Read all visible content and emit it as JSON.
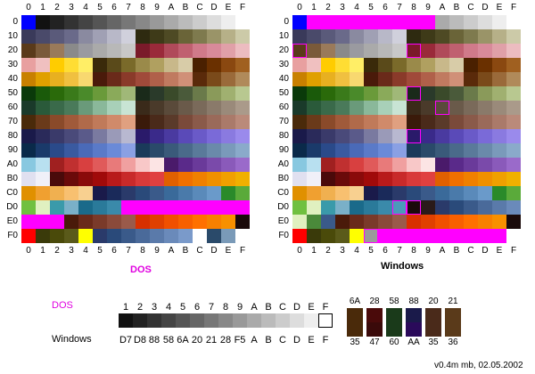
{
  "hex_digits": [
    "0",
    "1",
    "2",
    "3",
    "4",
    "5",
    "6",
    "7",
    "8",
    "9",
    "A",
    "B",
    "C",
    "D",
    "E",
    "F"
  ],
  "row_labels": [
    "0",
    "10",
    "20",
    "30",
    "40",
    "50",
    "60",
    "70",
    "80",
    "90",
    "A0",
    "B0",
    "C0",
    "D0",
    "E0",
    "F0"
  ],
  "left_title": "DOS",
  "right_title": "Windows",
  "dos_color": "#e000e0",
  "magenta": "#ff00ff",
  "left_grid": [
    [
      "#0000ff",
      "#111111",
      "#222222",
      "#333333",
      "#444444",
      "#555555",
      "#666666",
      "#777777",
      "#888888",
      "#999999",
      "#aaaaaa",
      "#bbbbbb",
      "#cccccc",
      "#dddddd",
      "#eeeeee",
      "#ffffff"
    ],
    [
      "#3a3a5a",
      "#4a4a6a",
      "#5a5a7a",
      "#6a6a8a",
      "#8a8aa0",
      "#a0a0b4",
      "#b8b8c8",
      "#d0d0dc",
      "#2e2a10",
      "#3e3a18",
      "#4e4a24",
      "#6a6438",
      "#7e7a4e",
      "#9a9468",
      "#b6b088",
      "#cccaa8"
    ],
    [
      "#5a3a1a",
      "#7a5a3a",
      "#9a7a5a",
      "#8a8a8a",
      "#9a9aa0",
      "#aaaaaa",
      "#b8b8b8",
      "#c8c8c8",
      "#7a1a2a",
      "#9a2a3a",
      "#b04a5a",
      "#c06070",
      "#d07a8a",
      "#d88a9a",
      "#e0a0a8",
      "#ecbcc0"
    ],
    [
      "#e8a0a0",
      "#f0c0c0",
      "#ffcc00",
      "#ffdd33",
      "#ffee66",
      "#3a2a0a",
      "#5a4a1a",
      "#7a6a2a",
      "#9a8a4a",
      "#b0a060",
      "#c8b88a",
      "#d8cca8",
      "#4a2000",
      "#6a3000",
      "#8a4810",
      "#a06020"
    ],
    [
      "#c88000",
      "#e0a000",
      "#e8b020",
      "#f0c040",
      "#f8d870",
      "#4a1a0a",
      "#6a2a1a",
      "#8a3a2a",
      "#a04a3a",
      "#b0604a",
      "#c07a60",
      "#d09078",
      "#5a2a0a",
      "#7a4a1a",
      "#9a6a3a",
      "#b08a5a"
    ],
    [
      "#0a3a0a",
      "#1a5a0a",
      "#2a6a0a",
      "#3a7a1a",
      "#4a8a2a",
      "#6a9a3a",
      "#8aaa5a",
      "#a0b878",
      "#1a2a1a",
      "#2a3a2a",
      "#3a4a2a",
      "#4a5a3a",
      "#6a7a4a",
      "#8a9a5a",
      "#a0b070",
      "#b8c890"
    ],
    [
      "#1a3a2a",
      "#2a5a3a",
      "#3a6a4a",
      "#4a7a5a",
      "#6a9a7a",
      "#8ab89a",
      "#a8d0b8",
      "#c8e4d4",
      "#3a2a1a",
      "#4a3a2a",
      "#5a4a3a",
      "#6a5a4a",
      "#7a6a5a",
      "#8a7a6a",
      "#9a8a7a",
      "#aa9a8a"
    ],
    [
      "#4a2a0a",
      "#6a3a1a",
      "#8a4a2a",
      "#a05a3a",
      "#b06a4a",
      "#c07a5a",
      "#d08a6a",
      "#e0a080",
      "#3a1a0a",
      "#4a2a1a",
      "#5a3a2a",
      "#7a4a3a",
      "#8a5a4a",
      "#9a6a5a",
      "#aa7a6a",
      "#ba8a7a"
    ],
    [
      "#1a1a4a",
      "#2a2a5a",
      "#3a3a6a",
      "#4a4a7a",
      "#5a5a8a",
      "#7a7aa0",
      "#9a9ab8",
      "#b8b8d0",
      "#2a1a6a",
      "#3a2a8a",
      "#4a3aa0",
      "#5a4ab8",
      "#6a5ac8",
      "#7a6ad8",
      "#8a7ae0",
      "#9a8aec"
    ],
    [
      "#0a2a4a",
      "#1a3a6a",
      "#2a4a8a",
      "#3a5aa0",
      "#4a6ab8",
      "#5a7ac8",
      "#6a8ad8",
      "#8aa0e4",
      "#1a3a5a",
      "#2a4a6a",
      "#3a5a7a",
      "#4a6a8a",
      "#5a7a9a",
      "#6a8aaa",
      "#7a9aba",
      "#8aaaca"
    ],
    [
      "#88c8e0",
      "#b8e0f0",
      "#a02020",
      "#c03030",
      "#d84040",
      "#e05a5a",
      "#e87a7a",
      "#f0a0a0",
      "#f8c8c8",
      "#fce4e4",
      "#4a1a6a",
      "#5a2a8a",
      "#6a3a9a",
      "#7a4aaa",
      "#8a5aba",
      "#9a6aca"
    ],
    [
      "#e0e0f0",
      "#f0f0f8",
      "#4a0a0a",
      "#6a0a0a",
      "#8a0a0a",
      "#a00a0a",
      "#b81a1a",
      "#c82a2a",
      "#d83a3a",
      "#e04040",
      "#e06000",
      "#f07000",
      "#f08000",
      "#f09000",
      "#f0a000",
      "#f0b000"
    ],
    [
      "#e09000",
      "#f0a030",
      "#f0b050",
      "#f8c070",
      "#f8d090",
      "#1a1a4a",
      "#1a2a5a",
      "#2a3a6a",
      "#2a4a7a",
      "#3a5a8a",
      "#3a6a9a",
      "#4a7aaa",
      "#5a8aba",
      "#6a9aca",
      "#2a8a2a",
      "#5aaa3a"
    ],
    [
      "#70c040",
      "#e0f0c0",
      "#3a9aaa",
      "#7ab0c8",
      "#1a6a8a",
      "#2a7a9a",
      "#3a8aaa",
      "#ff00ff",
      "#ff00ff",
      "#ff00ff",
      "#ff00ff",
      "#ff00ff",
      "#ff00ff",
      "#ff00ff",
      "#ff00ff",
      "#ff00ff"
    ],
    [
      "#ff00ff",
      "#ff00ff",
      "#ff00ff",
      "#4a1a0a",
      "#6a2a1a",
      "#7a3a2a",
      "#8a4a3a",
      "#9a5a4a",
      "#d83000",
      "#e04000",
      "#f05000",
      "#f86000",
      "#ff7000",
      "#f88000",
      "#f89000",
      "#1a0a0a"
    ],
    [
      "#ff0000",
      "#3a3a0a",
      "#4a4a0a",
      "#5a5a1a",
      "#ffff00",
      "#2a3a6a",
      "#2a4a7a",
      "#3a5a8a",
      "#4a6a9a",
      "#5a7aaa",
      "#6a8aba",
      "#7a9aca",
      "#ffffff",
      "#2a4a6a",
      "#7a9ab8",
      "#ffffff"
    ]
  ],
  "right_grid": [
    [
      "#0000ff",
      "#ff00ff",
      "#ff00ff",
      "#ff00ff",
      "#ff00ff",
      "#ff00ff",
      "#ff00ff",
      "#ff00ff",
      "#ff00ff",
      "#ff00ff",
      "#aaaaaa",
      "#bbbbbb",
      "#cccccc",
      "#dddddd",
      "#eeeeee",
      "#ffffff"
    ],
    [
      "#3a3a5a",
      "#4a4a6a",
      "#5a5a7a",
      "#6a6a8a",
      "#8a8aa0",
      "#a0a0b4",
      "#b8b8c8",
      "#d0d0dc",
      "#2e2a10",
      "#3e3a18",
      "#4e4a24",
      "#6a6438",
      "#7e7a4e",
      "#9a9468",
      "#b6b088",
      "#cccaa8"
    ],
    [
      "#5a3a1a",
      "#7a5a3a",
      "#9a7a5a",
      "#8a8a8a",
      "#9a9aa0",
      "#aaaaaa",
      "#b8b8b8",
      "#c8c8c8",
      "#7a1a2a",
      "#9a2a3a",
      "#b04a5a",
      "#c06070",
      "#d07a8a",
      "#d88a9a",
      "#e0a0a8",
      "#ecbcc0"
    ],
    [
      "#e8a0a0",
      "#f0c0c0",
      "#ffcc00",
      "#ffdd33",
      "#ffee66",
      "#3a2a0a",
      "#5a4a1a",
      "#7a6a2a",
      "#9a8a4a",
      "#b0a060",
      "#c8b88a",
      "#d8cca8",
      "#4a2000",
      "#6a3000",
      "#8a4810",
      "#a06020"
    ],
    [
      "#c88000",
      "#e0a000",
      "#e8b020",
      "#f0c040",
      "#f8d870",
      "#4a1a0a",
      "#6a2a1a",
      "#8a3a2a",
      "#a04a3a",
      "#b0604a",
      "#c07a60",
      "#d09078",
      "#5a2a0a",
      "#7a4a1a",
      "#9a6a3a",
      "#b08a5a"
    ],
    [
      "#0a3a0a",
      "#1a5a0a",
      "#2a6a0a",
      "#3a7a1a",
      "#4a8a2a",
      "#6a9a3a",
      "#8aaa5a",
      "#a0b878",
      "#1a2a1a",
      "#2a3a2a",
      "#3a4a2a",
      "#4a5a3a",
      "#6a7a4a",
      "#8a9a5a",
      "#a0b070",
      "#b8c890"
    ],
    [
      "#1a3a2a",
      "#2a5a3a",
      "#3a6a4a",
      "#4a7a5a",
      "#6a9a7a",
      "#8ab89a",
      "#a8d0b8",
      "#c8e4d4",
      "#3a2a1a",
      "#4a3a2a",
      "#5a4a3a",
      "#6a5a4a",
      "#7a6a5a",
      "#8a7a6a",
      "#9a8a7a",
      "#aa9a8a"
    ],
    [
      "#4a2a0a",
      "#6a3a1a",
      "#8a4a2a",
      "#a05a3a",
      "#b06a4a",
      "#c07a5a",
      "#d08a6a",
      "#e0a080",
      "#3a1a0a",
      "#4a2a1a",
      "#5a3a2a",
      "#7a4a3a",
      "#8a5a4a",
      "#9a6a5a",
      "#aa7a6a",
      "#ba8a7a"
    ],
    [
      "#1a1a4a",
      "#2a2a5a",
      "#3a3a6a",
      "#4a4a7a",
      "#5a5a8a",
      "#7a7aa0",
      "#9a9ab8",
      "#b8b8d0",
      "#2a1a6a",
      "#3a2a8a",
      "#4a3aa0",
      "#5a4ab8",
      "#6a5ac8",
      "#7a6ad8",
      "#8a7ae0",
      "#9a8aec"
    ],
    [
      "#0a2a4a",
      "#1a3a6a",
      "#2a4a8a",
      "#3a5aa0",
      "#4a6ab8",
      "#5a7ac8",
      "#6a8ad8",
      "#8aa0e4",
      "#1a3a5a",
      "#2a4a6a",
      "#3a5a7a",
      "#4a6a8a",
      "#5a7a9a",
      "#6a8aaa",
      "#7a9aba",
      "#8aaaca"
    ],
    [
      "#88c8e0",
      "#b8e0f0",
      "#a02020",
      "#c03030",
      "#d84040",
      "#e05a5a",
      "#e87a7a",
      "#f0a0a0",
      "#f8c8c8",
      "#fce4e4",
      "#4a1a6a",
      "#5a2a8a",
      "#6a3a9a",
      "#7a4aaa",
      "#8a5aba",
      "#9a6aca"
    ],
    [
      "#e0e0f0",
      "#f0f0f8",
      "#4a0a0a",
      "#6a0a0a",
      "#8a0a0a",
      "#a00a0a",
      "#b81a1a",
      "#c82a2a",
      "#d83a3a",
      "#e04040",
      "#e06000",
      "#f07000",
      "#f08000",
      "#f09000",
      "#f0a000",
      "#f0b000"
    ],
    [
      "#e09000",
      "#f0a030",
      "#f0b050",
      "#f8c070",
      "#f8d090",
      "#1a1a4a",
      "#1a2a5a",
      "#2a3a6a",
      "#2a4a7a",
      "#3a5a8a",
      "#3a6a9a",
      "#4a7aaa",
      "#5a8aba",
      "#6a9aca",
      "#2a8a2a",
      "#5aaa3a"
    ],
    [
      "#70c040",
      "#e0f0c0",
      "#3a9aaa",
      "#7ab0c8",
      "#1a6a8a",
      "#2a7a9a",
      "#3a8aaa",
      "#4a9aba",
      "#1a0a0a",
      "#2a1a1a",
      "#2a3a6a",
      "#2a4a7a",
      "#3a5a8a",
      "#4a6a9a",
      "#5a7aaa",
      "#6a8aba"
    ],
    [
      "#e0f0c0",
      "#4a8a3a",
      "#3a5a8a",
      "#4a1a0a",
      "#6a2a1a",
      "#7a3a2a",
      "#8a4a3a",
      "#9a5a4a",
      "#d83000",
      "#e04000",
      "#f05000",
      "#f86000",
      "#ff7000",
      "#f88000",
      "#f89000",
      "#1a0a0a"
    ],
    [
      "#ff0000",
      "#3a3a0a",
      "#4a4a0a",
      "#5a5a1a",
      "#ffff00",
      "#9a9a9a",
      "#ff00ff",
      "#ff00ff",
      "#ff00ff",
      "#ff00ff",
      "#ff00ff",
      "#ff00ff",
      "#ff00ff",
      "#ff00ff",
      "#ff00ff",
      "#ffffff"
    ]
  ],
  "right_outlined": [
    [
      2,
      0
    ],
    [
      2,
      8
    ],
    [
      5,
      8
    ],
    [
      6,
      10
    ],
    [
      8,
      8
    ],
    [
      13,
      7
    ],
    [
      13,
      8
    ],
    [
      15,
      5
    ]
  ],
  "legend": {
    "dos_label": "DOS",
    "windows_label": "Windows",
    "dos_codes": [
      "1",
      "2",
      "3",
      "4",
      "5",
      "6",
      "7",
      "8",
      "9",
      "A",
      "B",
      "C",
      "D",
      "E",
      "F"
    ],
    "windows_codes": [
      "D7",
      "D8",
      "88",
      "58",
      "6A",
      "20",
      "21",
      "28",
      "F5",
      "A",
      "B",
      "C",
      "D",
      "E",
      "F"
    ],
    "strip_colors": [
      "#111111",
      "#222222",
      "#333333",
      "#444444",
      "#555555",
      "#666666",
      "#777777",
      "#888888",
      "#999999",
      "#aaaaaa",
      "#bbbbbb",
      "#cccccc",
      "#dddddd",
      "#eeeeee",
      "#ffffff"
    ]
  },
  "swatches_top": {
    "labels": [
      "6A",
      "28",
      "58",
      "88",
      "20",
      "21"
    ],
    "colors": [
      "#4a2a0a",
      "#4a0a0a",
      "#1a3a1a",
      "#1a1a4a",
      "#4a2a1a",
      "#5a3a1a"
    ]
  },
  "swatches_bottom": {
    "labels": [
      "35",
      "47",
      "60",
      "AA",
      "35",
      "36"
    ],
    "colors": [
      "#4a2a0a",
      "#3a0a0a",
      "#1a3a1a",
      "#2a0a5a",
      "#4a2a1a",
      "#5a3a1a"
    ]
  },
  "footer": "v0.4m mb, 02.05.2002"
}
